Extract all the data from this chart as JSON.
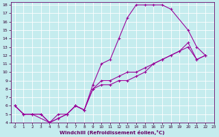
{
  "xlabel": "Windchill (Refroidissement éolien,°C)",
  "bg_color": "#c5ecee",
  "line_color": "#990099",
  "grid_color": "#ffffff",
  "xlim": [
    -0.5,
    23
  ],
  "ylim": [
    4,
    18.3
  ],
  "xticks": [
    0,
    1,
    2,
    3,
    4,
    5,
    6,
    7,
    8,
    9,
    10,
    11,
    12,
    13,
    14,
    15,
    16,
    17,
    18,
    19,
    20,
    21,
    22,
    23
  ],
  "yticks": [
    4,
    5,
    6,
    7,
    8,
    9,
    10,
    11,
    12,
    13,
    14,
    15,
    16,
    17,
    18
  ],
  "line1_x": [
    0,
    1,
    2,
    3,
    4,
    5,
    6,
    7,
    8,
    9,
    10,
    11,
    12,
    13,
    14,
    15,
    16,
    17,
    20,
    21,
    22
  ],
  "line1_y": [
    6,
    5,
    5,
    5,
    4,
    4.5,
    5,
    6,
    5.5,
    8,
    9,
    9,
    9.5,
    10,
    10,
    10.5,
    11,
    11.5,
    13,
    11.5,
    12
  ],
  "line2_x": [
    0,
    1,
    2,
    3,
    4,
    5,
    6,
    7,
    8,
    9,
    10,
    11,
    12,
    13,
    14,
    15,
    16,
    17,
    18,
    19,
    20,
    21,
    22
  ],
  "line2_y": [
    6,
    5,
    5,
    5,
    4,
    4.5,
    5,
    6,
    5.5,
    8,
    8.5,
    8.5,
    9,
    9,
    9.5,
    10,
    11,
    11.5,
    12,
    12.5,
    13.5,
    11.5,
    12
  ],
  "line3_x": [
    0,
    1,
    2,
    4,
    5,
    6,
    7,
    8,
    9,
    10,
    11,
    12,
    13,
    14,
    15,
    16,
    17,
    18,
    20,
    21,
    22
  ],
  "line3_y": [
    6,
    5,
    5,
    4,
    5,
    5,
    6,
    5.5,
    8.5,
    11,
    11.5,
    14,
    16.5,
    18,
    18,
    18,
    18,
    17.5,
    15,
    13,
    12
  ]
}
